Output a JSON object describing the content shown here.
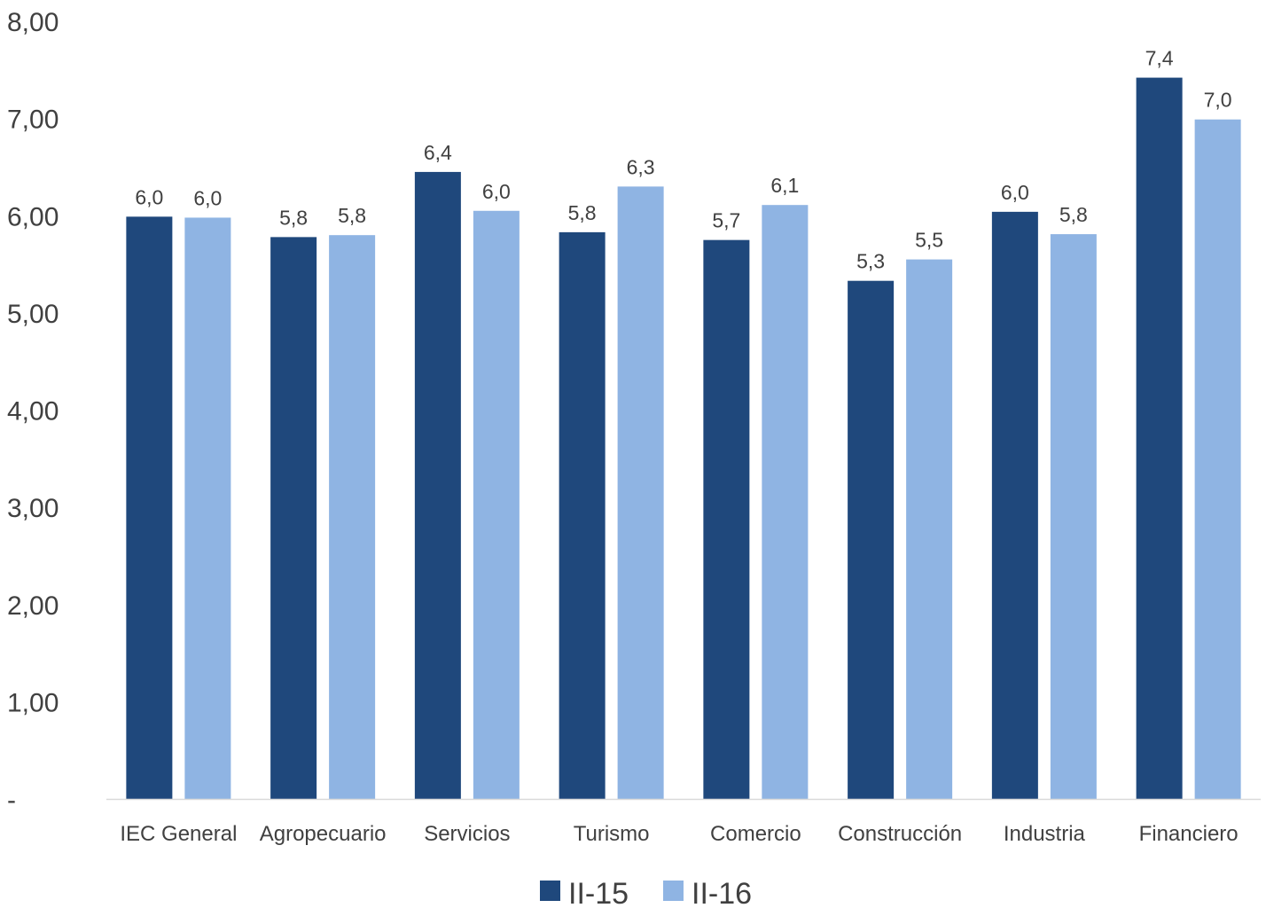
{
  "chart_data": {
    "type": "bar",
    "categories": [
      "IEC General",
      "Agropecuario",
      "Servicios",
      "Turismo",
      "Comercio",
      "Construcción",
      "Industria",
      "Financiero"
    ],
    "series": [
      {
        "name": "II-15",
        "color": "#1f487c",
        "values": [
          5.99,
          5.78,
          6.45,
          5.83,
          5.75,
          5.33,
          6.04,
          7.42
        ],
        "labels": [
          "6,0",
          "5,8",
          "6,4",
          "5,8",
          "5,7",
          "5,3",
          "6,0",
          "7,4"
        ]
      },
      {
        "name": "II-16",
        "color": "#8fb4e3",
        "values": [
          5.98,
          5.8,
          6.05,
          6.3,
          6.11,
          5.55,
          5.81,
          6.99
        ],
        "labels": [
          "6,0",
          "5,8",
          "6,0",
          "6,3",
          "6,1",
          "5,5",
          "5,8",
          "7,0"
        ]
      }
    ],
    "y_ticks": [
      "-",
      "1,00",
      "2,00",
      "3,00",
      "4,00",
      "5,00",
      "6,00",
      "7,00",
      "8,00"
    ],
    "ylim": [
      0,
      8
    ],
    "grid": false,
    "legend_position": "bottom"
  }
}
